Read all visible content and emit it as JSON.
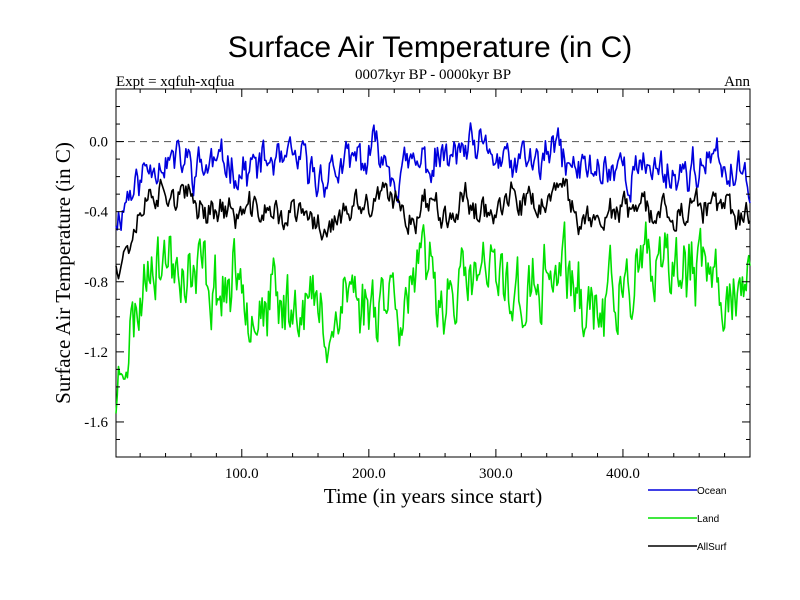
{
  "chart_data": {
    "type": "line",
    "title": "Surface Air Temperature (in C)",
    "subtitle": "0007kyr BP - 0000kyr BP",
    "experiment_label": "Expt = xqfuh-xqfua",
    "season_label": "Ann",
    "xlabel": "Time (in years since start)",
    "ylabel": "Surface Air Temperature (in C)",
    "xlim": [
      1,
      500
    ],
    "ylim": [
      -1.8,
      0.3
    ],
    "xticks": [
      {
        "value": 100,
        "label": "100.0"
      },
      {
        "value": 200,
        "label": "200.0"
      },
      {
        "value": 300,
        "label": "300.0"
      },
      {
        "value": 400,
        "label": "400.0"
      }
    ],
    "yticks": [
      {
        "value": 0.0,
        "label": "0.0"
      },
      {
        "value": -0.4,
        "label": "-0.4"
      },
      {
        "value": -0.8,
        "label": "-0.8"
      },
      {
        "value": -1.2,
        "label": "-1.2"
      },
      {
        "value": -1.6,
        "label": "-1.6"
      }
    ],
    "zero_line": {
      "value": 0.0,
      "style": "dashed"
    },
    "legend_placement": "bottom-right, below plot",
    "series": [
      {
        "name": "Ocean",
        "color": "#0000dd",
        "mean": -0.18,
        "amplitude": 0.13,
        "seed": 11,
        "anchors": [
          [
            1,
            -0.42
          ],
          [
            5,
            -0.38
          ],
          [
            10,
            -0.28
          ],
          [
            20,
            -0.2
          ],
          [
            30,
            -0.1
          ],
          [
            40,
            -0.08
          ],
          [
            60,
            -0.12
          ],
          [
            90,
            -0.12
          ],
          [
            110,
            -0.15
          ],
          [
            140,
            -0.12
          ],
          [
            160,
            -0.2
          ],
          [
            175,
            -0.16
          ],
          [
            200,
            -0.12
          ],
          [
            210,
            -0.02
          ],
          [
            220,
            -0.14
          ],
          [
            250,
            -0.14
          ],
          [
            280,
            -0.08
          ],
          [
            300,
            -0.12
          ],
          [
            330,
            -0.14
          ],
          [
            350,
            -0.06
          ],
          [
            360,
            -0.16
          ],
          [
            400,
            -0.16
          ],
          [
            440,
            -0.16
          ],
          [
            470,
            -0.15
          ],
          [
            500,
            -0.2
          ]
        ]
      },
      {
        "name": "Land",
        "color": "#00e000",
        "mean": -0.85,
        "amplitude": 0.24,
        "seed": 23,
        "anchors": [
          [
            1,
            -1.45
          ],
          [
            6,
            -1.25
          ],
          [
            12,
            -1.1
          ],
          [
            20,
            -0.9
          ],
          [
            30,
            -0.55
          ],
          [
            40,
            -0.7
          ],
          [
            60,
            -0.82
          ],
          [
            80,
            -0.84
          ],
          [
            100,
            -0.82
          ],
          [
            120,
            -0.88
          ],
          [
            150,
            -0.92
          ],
          [
            165,
            -1.05
          ],
          [
            180,
            -0.88
          ],
          [
            195,
            -0.92
          ],
          [
            210,
            -0.8
          ],
          [
            230,
            -0.9
          ],
          [
            250,
            -0.72
          ],
          [
            270,
            -0.85
          ],
          [
            300,
            -0.8
          ],
          [
            330,
            -0.92
          ],
          [
            350,
            -0.72
          ],
          [
            370,
            -0.9
          ],
          [
            400,
            -0.84
          ],
          [
            440,
            -0.74
          ],
          [
            470,
            -0.82
          ],
          [
            500,
            -0.85
          ]
        ]
      },
      {
        "name": "AllSurf",
        "color": "#000000",
        "mean": -0.42,
        "amplitude": 0.1,
        "seed": 37,
        "anchors": [
          [
            1,
            -0.68
          ],
          [
            6,
            -0.62
          ],
          [
            12,
            -0.55
          ],
          [
            20,
            -0.42
          ],
          [
            30,
            -0.28
          ],
          [
            40,
            -0.3
          ],
          [
            60,
            -0.36
          ],
          [
            90,
            -0.4
          ],
          [
            120,
            -0.4
          ],
          [
            150,
            -0.42
          ],
          [
            165,
            -0.5
          ],
          [
            180,
            -0.44
          ],
          [
            200,
            -0.4
          ],
          [
            210,
            -0.32
          ],
          [
            230,
            -0.42
          ],
          [
            250,
            -0.34
          ],
          [
            280,
            -0.36
          ],
          [
            300,
            -0.38
          ],
          [
            330,
            -0.4
          ],
          [
            350,
            -0.32
          ],
          [
            370,
            -0.42
          ],
          [
            400,
            -0.4
          ],
          [
            440,
            -0.4
          ],
          [
            470,
            -0.42
          ],
          [
            500,
            -0.42
          ]
        ]
      }
    ]
  }
}
